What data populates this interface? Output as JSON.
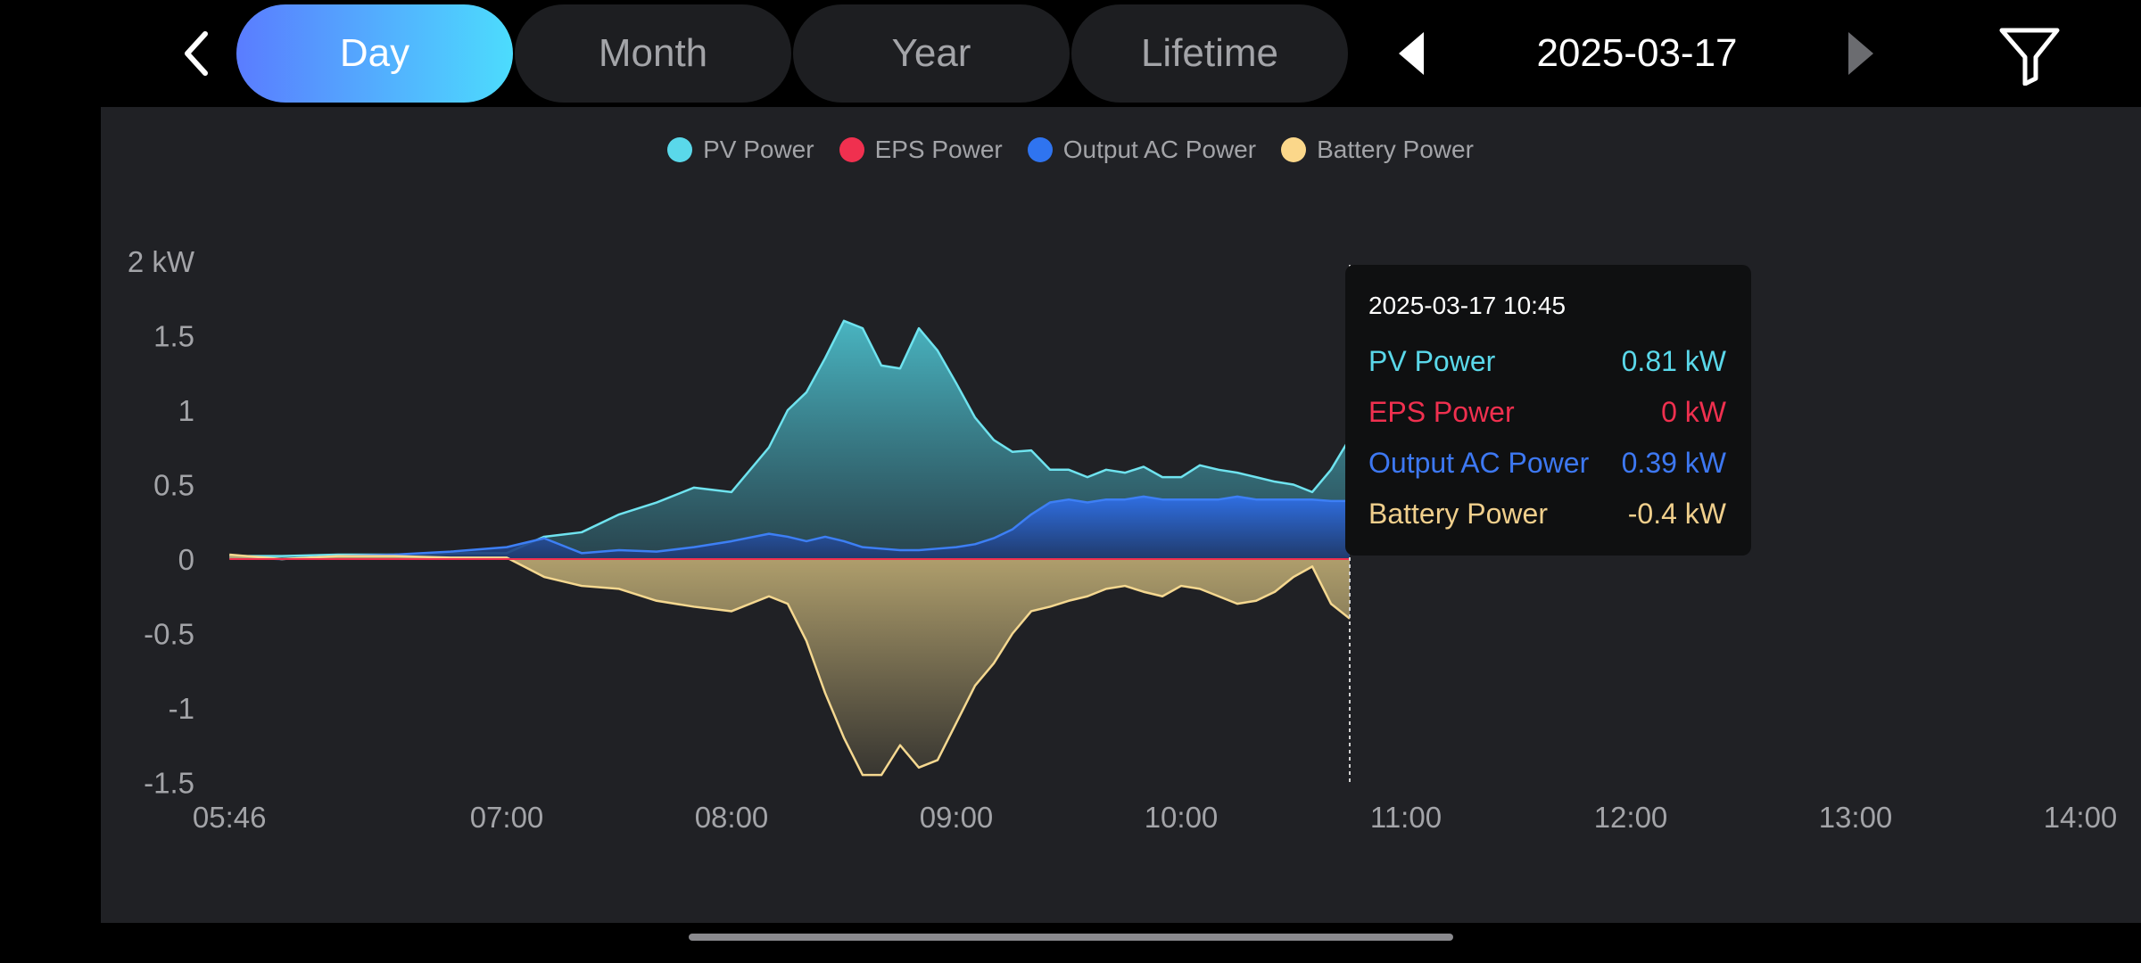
{
  "tabs": [
    {
      "label": "Day",
      "active": true
    },
    {
      "label": "Month",
      "active": false
    },
    {
      "label": "Year",
      "active": false
    },
    {
      "label": "Lifetime",
      "active": false
    }
  ],
  "date": "2025-03-17",
  "icons": {
    "back": "chevron-left-icon",
    "prev": "triangle-left-icon",
    "next": "triangle-right-icon",
    "filter": "filter-icon"
  },
  "colors": {
    "pv": "#5ad8ea",
    "eps": "#f0304f",
    "output_ac": "#2f74f0",
    "battery": "#fbd78a",
    "background": "#202125"
  },
  "tooltip": {
    "time": "2025-03-17 10:45",
    "rows": [
      {
        "label": "PV Power",
        "value": "0.81 kW",
        "color": "#5ad8ea"
      },
      {
        "label": "EPS Power",
        "value": "0 kW",
        "color": "#f0304f"
      },
      {
        "label": "Output AC Power",
        "value": "0.39 kW",
        "color": "#3d78f2"
      },
      {
        "label": "Battery Power",
        "value": "-0.4 kW",
        "color": "#f0cf8c"
      }
    ]
  },
  "chart_data": {
    "type": "area",
    "x_ticks": [
      "05:46",
      "07:00",
      "08:00",
      "09:00",
      "10:00",
      "11:00",
      "12:00",
      "13:00",
      "14:00"
    ],
    "y_ticks": [
      "2 kW",
      "1.5",
      "1",
      "0.5",
      "0",
      "-0.5",
      "-1",
      "-1.5"
    ],
    "ylim": [
      -1.5,
      2
    ],
    "legend": [
      "PV Power",
      "EPS Power",
      "Output AC Power",
      "Battery Power"
    ],
    "legend_position": "top-center",
    "cursor_time": "10:45",
    "x": [
      "05:46",
      "06:00",
      "06:15",
      "06:30",
      "06:45",
      "07:00",
      "07:10",
      "07:20",
      "07:30",
      "07:40",
      "07:50",
      "08:00",
      "08:10",
      "08:15",
      "08:20",
      "08:25",
      "08:30",
      "08:35",
      "08:40",
      "08:45",
      "08:50",
      "08:55",
      "09:00",
      "09:05",
      "09:10",
      "09:15",
      "09:20",
      "09:25",
      "09:30",
      "09:35",
      "09:40",
      "09:45",
      "09:50",
      "09:55",
      "10:00",
      "10:05",
      "10:10",
      "10:15",
      "10:20",
      "10:25",
      "10:30",
      "10:35",
      "10:40",
      "10:45"
    ],
    "series": [
      {
        "name": "PV Power",
        "values": [
          0.02,
          0.02,
          0.03,
          0.03,
          0.04,
          0.04,
          0.15,
          0.18,
          0.3,
          0.38,
          0.48,
          0.45,
          0.75,
          1.0,
          1.12,
          1.35,
          1.6,
          1.55,
          1.3,
          1.28,
          1.55,
          1.4,
          1.18,
          0.95,
          0.8,
          0.72,
          0.73,
          0.6,
          0.6,
          0.55,
          0.6,
          0.58,
          0.62,
          0.55,
          0.55,
          0.63,
          0.6,
          0.58,
          0.55,
          0.52,
          0.5,
          0.45,
          0.6,
          0.81
        ]
      },
      {
        "name": "EPS Power",
        "values": [
          0,
          0,
          0,
          0,
          0,
          0,
          0,
          0,
          0,
          0,
          0,
          0,
          0,
          0,
          0,
          0,
          0,
          0,
          0,
          0,
          0,
          0,
          0,
          0,
          0,
          0,
          0,
          0,
          0,
          0,
          0,
          0,
          0,
          0,
          0,
          0,
          0,
          0,
          0,
          0,
          0,
          0,
          0,
          0
        ]
      },
      {
        "name": "Output AC Power",
        "values": [
          0.01,
          0.0,
          0.02,
          0.03,
          0.05,
          0.08,
          0.14,
          0.04,
          0.06,
          0.05,
          0.08,
          0.12,
          0.17,
          0.15,
          0.12,
          0.15,
          0.12,
          0.08,
          0.07,
          0.06,
          0.06,
          0.07,
          0.08,
          0.1,
          0.14,
          0.2,
          0.3,
          0.38,
          0.4,
          0.38,
          0.4,
          0.4,
          0.42,
          0.4,
          0.4,
          0.4,
          0.4,
          0.42,
          0.4,
          0.4,
          0.4,
          0.4,
          0.39,
          0.39
        ]
      },
      {
        "name": "Battery Power",
        "values": [
          0.03,
          0.0,
          0.02,
          0.02,
          0.01,
          0.01,
          -0.12,
          -0.18,
          -0.2,
          -0.28,
          -0.32,
          -0.35,
          -0.25,
          -0.3,
          -0.55,
          -0.9,
          -1.2,
          -1.45,
          -1.45,
          -1.25,
          -1.4,
          -1.35,
          -1.1,
          -0.85,
          -0.7,
          -0.5,
          -0.35,
          -0.32,
          -0.28,
          -0.25,
          -0.2,
          -0.18,
          -0.22,
          -0.25,
          -0.18,
          -0.2,
          -0.25,
          -0.3,
          -0.28,
          -0.22,
          -0.12,
          -0.05,
          -0.3,
          -0.4
        ]
      }
    ]
  }
}
